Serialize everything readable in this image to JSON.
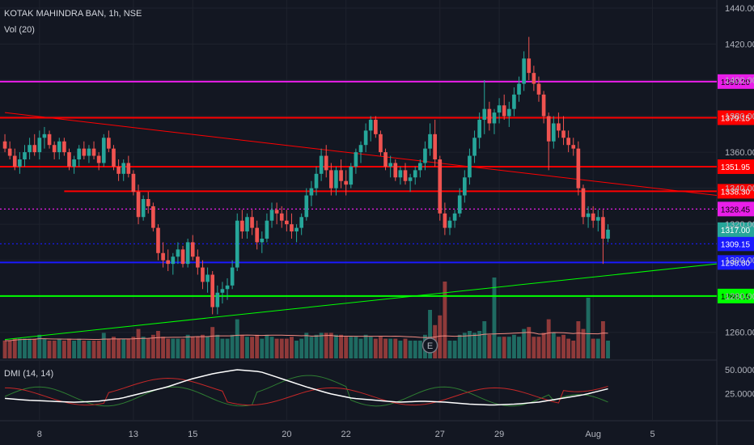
{
  "header": {
    "symbol": "KOTAK MAHINDRA BAN, 1h, NSE",
    "volume": "Vol (20)",
    "dmi": "DMI (14, 14)"
  },
  "colors": {
    "background": "#131722",
    "grid": "#1e222d",
    "up": "#26a69a",
    "down": "#ef5350",
    "upVol": "#1f6b62",
    "downVol": "#8f3a3a",
    "red": "#ff0000",
    "magenta": "#e91ee9",
    "blue": "#1a1aff",
    "green": "#00ff00",
    "white": "#ffffff",
    "current": "#26a69a"
  },
  "earnings_marker": "E",
  "chart_data": {
    "type": "candlestick",
    "y_axis": {
      "min": 1250,
      "max": 1440,
      "ticks": [
        "1440.00",
        "1420.00",
        "1400.00",
        "1380.00",
        "1360.00",
        "1340.00",
        "1320.00",
        "1300.00",
        "1280.00",
        "1260.00"
      ]
    },
    "x_axis_ticks": [
      {
        "label": "8",
        "bar": 7
      },
      {
        "label": "13",
        "bar": 26
      },
      {
        "label": "15",
        "bar": 38
      },
      {
        "label": "20",
        "bar": 57
      },
      {
        "label": "22",
        "bar": 69
      },
      {
        "label": "27",
        "bar": 88
      },
      {
        "label": "29",
        "bar": 100
      },
      {
        "label": "Aug",
        "bar": 119
      },
      {
        "label": "5",
        "bar": 131
      }
    ],
    "bars_visible": 145,
    "candles": [
      [
        1366,
        1370,
        1360,
        1362
      ],
      [
        1362,
        1366,
        1356,
        1358
      ],
      [
        1358,
        1362,
        1350,
        1352
      ],
      [
        1352,
        1360,
        1348,
        1356
      ],
      [
        1356,
        1364,
        1352,
        1360
      ],
      [
        1360,
        1368,
        1356,
        1364
      ],
      [
        1364,
        1370,
        1358,
        1360
      ],
      [
        1360,
        1372,
        1356,
        1368
      ],
      [
        1368,
        1374,
        1362,
        1370
      ],
      [
        1370,
        1372,
        1362,
        1364
      ],
      [
        1364,
        1366,
        1356,
        1360
      ],
      [
        1360,
        1368,
        1356,
        1366
      ],
      [
        1366,
        1368,
        1358,
        1360
      ],
      [
        1360,
        1362,
        1350,
        1352
      ],
      [
        1352,
        1358,
        1348,
        1356
      ],
      [
        1356,
        1364,
        1352,
        1362
      ],
      [
        1362,
        1366,
        1356,
        1358
      ],
      [
        1358,
        1364,
        1354,
        1362
      ],
      [
        1362,
        1366,
        1356,
        1358
      ],
      [
        1358,
        1360,
        1350,
        1354
      ],
      [
        1354,
        1370,
        1352,
        1368
      ],
      [
        1368,
        1372,
        1360,
        1362
      ],
      [
        1362,
        1364,
        1350,
        1352
      ],
      [
        1352,
        1356,
        1344,
        1348
      ],
      [
        1348,
        1356,
        1344,
        1354
      ],
      [
        1354,
        1358,
        1346,
        1348
      ],
      [
        1348,
        1350,
        1336,
        1338
      ],
      [
        1338,
        1342,
        1320,
        1324
      ],
      [
        1324,
        1336,
        1322,
        1334
      ],
      [
        1334,
        1338,
        1326,
        1330
      ],
      [
        1330,
        1332,
        1316,
        1318
      ],
      [
        1318,
        1320,
        1300,
        1304
      ],
      [
        1304,
        1310,
        1296,
        1300
      ],
      [
        1300,
        1306,
        1294,
        1298
      ],
      [
        1298,
        1304,
        1292,
        1302
      ],
      [
        1302,
        1310,
        1298,
        1306
      ],
      [
        1306,
        1308,
        1296,
        1298
      ],
      [
        1298,
        1312,
        1296,
        1310
      ],
      [
        1310,
        1314,
        1300,
        1302
      ],
      [
        1302,
        1306,
        1292,
        1296
      ],
      [
        1296,
        1300,
        1284,
        1288
      ],
      [
        1288,
        1296,
        1282,
        1292
      ],
      [
        1292,
        1294,
        1270,
        1274
      ],
      [
        1274,
        1286,
        1270,
        1282
      ],
      [
        1282,
        1288,
        1276,
        1284
      ],
      [
        1284,
        1290,
        1278,
        1286
      ],
      [
        1286,
        1300,
        1284,
        1296
      ],
      [
        1296,
        1326,
        1294,
        1322
      ],
      [
        1322,
        1328,
        1312,
        1316
      ],
      [
        1316,
        1326,
        1312,
        1324
      ],
      [
        1324,
        1328,
        1314,
        1318
      ],
      [
        1318,
        1322,
        1306,
        1310
      ],
      [
        1310,
        1316,
        1304,
        1312
      ],
      [
        1312,
        1326,
        1310,
        1322
      ],
      [
        1322,
        1332,
        1318,
        1328
      ],
      [
        1328,
        1332,
        1320,
        1326
      ],
      [
        1326,
        1330,
        1318,
        1322
      ],
      [
        1322,
        1328,
        1316,
        1320
      ],
      [
        1320,
        1326,
        1312,
        1316
      ],
      [
        1316,
        1320,
        1310,
        1318
      ],
      [
        1318,
        1326,
        1314,
        1324
      ],
      [
        1324,
        1340,
        1322,
        1336
      ],
      [
        1336,
        1344,
        1330,
        1340
      ],
      [
        1340,
        1352,
        1336,
        1348
      ],
      [
        1348,
        1362,
        1344,
        1358
      ],
      [
        1358,
        1364,
        1346,
        1350
      ],
      [
        1350,
        1354,
        1336,
        1340
      ],
      [
        1340,
        1352,
        1336,
        1350
      ],
      [
        1350,
        1356,
        1340,
        1344
      ],
      [
        1344,
        1350,
        1336,
        1342
      ],
      [
        1342,
        1354,
        1340,
        1352
      ],
      [
        1352,
        1362,
        1348,
        1360
      ],
      [
        1360,
        1366,
        1354,
        1364
      ],
      [
        1364,
        1376,
        1360,
        1372
      ],
      [
        1372,
        1380,
        1366,
        1378
      ],
      [
        1378,
        1380,
        1368,
        1370
      ],
      [
        1370,
        1372,
        1358,
        1360
      ],
      [
        1360,
        1362,
        1350,
        1352
      ],
      [
        1352,
        1358,
        1346,
        1354
      ],
      [
        1354,
        1356,
        1344,
        1346
      ],
      [
        1346,
        1352,
        1342,
        1350
      ],
      [
        1350,
        1354,
        1342,
        1344
      ],
      [
        1344,
        1348,
        1338,
        1346
      ],
      [
        1346,
        1352,
        1342,
        1350
      ],
      [
        1350,
        1356,
        1346,
        1354
      ],
      [
        1354,
        1366,
        1350,
        1362
      ],
      [
        1362,
        1376,
        1358,
        1370
      ],
      [
        1370,
        1378,
        1352,
        1356
      ],
      [
        1356,
        1358,
        1322,
        1326
      ],
      [
        1326,
        1332,
        1314,
        1318
      ],
      [
        1318,
        1324,
        1314,
        1322
      ],
      [
        1322,
        1328,
        1318,
        1326
      ],
      [
        1326,
        1340,
        1324,
        1336
      ],
      [
        1336,
        1350,
        1332,
        1346
      ],
      [
        1346,
        1362,
        1342,
        1358
      ],
      [
        1358,
        1372,
        1354,
        1368
      ],
      [
        1368,
        1382,
        1362,
        1378
      ],
      [
        1378,
        1400,
        1370,
        1384
      ],
      [
        1384,
        1388,
        1372,
        1376
      ],
      [
        1376,
        1384,
        1370,
        1382
      ],
      [
        1382,
        1390,
        1376,
        1386
      ],
      [
        1386,
        1392,
        1378,
        1380
      ],
      [
        1380,
        1388,
        1374,
        1384
      ],
      [
        1384,
        1396,
        1380,
        1392
      ],
      [
        1392,
        1402,
        1388,
        1398
      ],
      [
        1398,
        1416,
        1394,
        1412
      ],
      [
        1412,
        1424,
        1400,
        1404
      ],
      [
        1404,
        1408,
        1394,
        1398
      ],
      [
        1398,
        1402,
        1388,
        1392
      ],
      [
        1392,
        1394,
        1376,
        1380
      ],
      [
        1380,
        1382,
        1350,
        1366
      ],
      [
        1366,
        1380,
        1362,
        1376
      ],
      [
        1376,
        1382,
        1368,
        1372
      ],
      [
        1372,
        1380,
        1364,
        1368
      ],
      [
        1368,
        1372,
        1360,
        1364
      ],
      [
        1364,
        1368,
        1358,
        1362
      ],
      [
        1362,
        1366,
        1336,
        1340
      ],
      [
        1340,
        1342,
        1320,
        1324
      ],
      [
        1324,
        1330,
        1318,
        1326
      ],
      [
        1326,
        1330,
        1318,
        1322
      ],
      [
        1322,
        1328,
        1316,
        1324
      ],
      [
        1324,
        1328,
        1298,
        1312
      ],
      [
        1312,
        1320,
        1310,
        1317
      ]
    ],
    "volume_ma_note": "red volume moving average line",
    "horizontal_levels": [
      {
        "price": 1399.2,
        "label": "1399.20",
        "color": "magenta",
        "style": "solid",
        "from_bar": 0
      },
      {
        "price": 1379.15,
        "label": "1379.15",
        "color": "red",
        "style": "solid",
        "from_bar": 0
      },
      {
        "price": 1351.95,
        "label": "1351.95",
        "color": "red",
        "style": "solid",
        "from_bar": 0
      },
      {
        "price": 1338.3,
        "label": "1338.30",
        "color": "red",
        "style": "solid",
        "from_bar": 12
      },
      {
        "price": 1328.45,
        "label": "1328.45",
        "color": "magenta",
        "style": "dotted",
        "from_bar": 0
      },
      {
        "price": 1309.15,
        "label": "1309.15",
        "color": "blue",
        "style": "dotted",
        "from_bar": 0
      },
      {
        "price": 1298.8,
        "label": "1298.80",
        "color": "blue",
        "style": "solid",
        "from_bar": 0
      },
      {
        "price": 1280.15,
        "label": "1280.15",
        "color": "green",
        "style": "solid",
        "from_bar": 0
      }
    ],
    "current_price": {
      "price": 1317.0,
      "label": "1317.00"
    },
    "trend_lines": [
      {
        "color": "red",
        "from": {
          "bar": 0,
          "price": 1382
        },
        "to": {
          "bar": 145,
          "price": 1336
        }
      },
      {
        "color": "green",
        "from": {
          "bar": 0,
          "price": 1256
        },
        "to": {
          "bar": 145,
          "price": 1298
        }
      }
    ],
    "dmi": {
      "ticks": [
        "50.0000",
        "25.0000"
      ],
      "min": 0,
      "max": 55
    }
  }
}
